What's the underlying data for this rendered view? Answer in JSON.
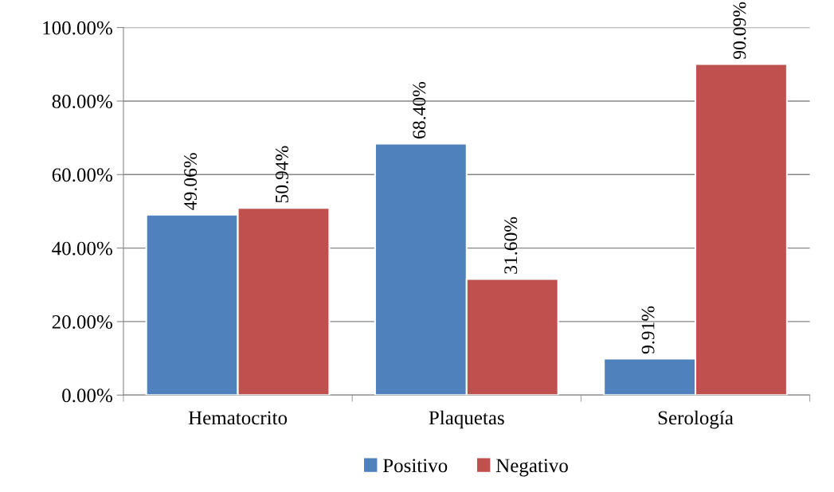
{
  "chart_data": {
    "type": "bar",
    "categories": [
      "Hematocrito",
      "Plaquetas",
      "Serología"
    ],
    "series": [
      {
        "name": "Positivo",
        "color": "#4f81bd",
        "values": [
          49.06,
          68.4,
          9.91
        ],
        "value_labels": [
          "49.06%",
          "68.40%",
          "9.91%"
        ]
      },
      {
        "name": "Negativo",
        "color": "#c0504d",
        "values": [
          50.94,
          31.6,
          90.09
        ],
        "value_labels": [
          "50.94%",
          "31.60%",
          "90.09%"
        ]
      }
    ],
    "ylim": [
      0,
      100
    ],
    "yticks": [
      {
        "value": 0,
        "label": "0.00%"
      },
      {
        "value": 20,
        "label": "20.00%"
      },
      {
        "value": 40,
        "label": "40.00%"
      },
      {
        "value": 60,
        "label": "60.00%"
      },
      {
        "value": 80,
        "label": "80.00%"
      },
      {
        "value": 100,
        "label": "100.00%"
      }
    ],
    "grid": "y",
    "legend": "bottom"
  }
}
